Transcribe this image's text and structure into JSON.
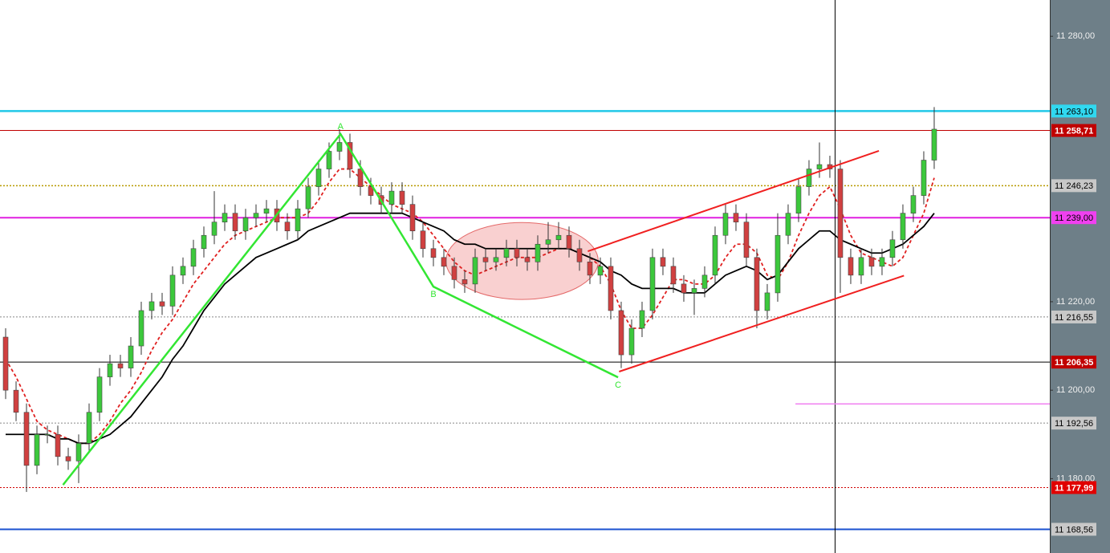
{
  "chart_data": {
    "type": "candlestick",
    "xlim": [
      -0.54,
      100.08
    ],
    "ylim": [
      11163.2,
      11288.2
    ],
    "yticks": [
      {
        "value": 11280,
        "label": "11 280,00"
      },
      {
        "value": 11220,
        "label": "11 220,00"
      },
      {
        "value": 11200,
        "label": "11 200,00"
      },
      {
        "value": 11180,
        "label": "11 180,00"
      }
    ],
    "up_color": "#3cc83c",
    "down_color": "#d04040",
    "open": [
      11212,
      11200,
      11195,
      11183,
      11190,
      11190,
      11185,
      11184,
      11188,
      11195,
      11203,
      11206,
      11205,
      11210,
      11218,
      11220,
      11219,
      11226,
      11228,
      11232,
      11235,
      11238,
      11240,
      11236,
      11239,
      11240,
      11241,
      11238,
      11236,
      11241,
      11246,
      11250,
      11254,
      11256,
      11250,
      11246,
      11244,
      11242,
      11245,
      11242,
      11236,
      11232,
      11230,
      11228,
      11225,
      11224,
      11230,
      11229,
      11230,
      11232,
      11230,
      11229,
      11233,
      11234,
      11235,
      11232,
      11229,
      11226,
      11228,
      11218,
      11208,
      11214,
      11218,
      11230,
      11228,
      11224,
      11222,
      11223,
      11226,
      11235,
      11240,
      11238,
      11230,
      11218,
      11222,
      11235,
      11240,
      11246,
      11250,
      11251,
      11250,
      11230,
      11226,
      11230,
      11228,
      11230,
      11234,
      11240,
      11244,
      11252
    ],
    "high": [
      11214,
      11202,
      11197,
      11192,
      11192,
      11192,
      11187,
      11190,
      11197,
      11205,
      11208,
      11208,
      11212,
      11220,
      11222,
      11222,
      11228,
      11230,
      11234,
      11237,
      11245,
      11242,
      11242,
      11241,
      11242,
      11243,
      11243,
      11240,
      11243,
      11248,
      11252,
      11256,
      11259,
      11258,
      11252,
      11248,
      11246,
      11247,
      11247,
      11244,
      11238,
      11234,
      11232,
      11230,
      11227,
      11232,
      11232,
      11232,
      11234,
      11234,
      11232,
      11235,
      11238,
      11238,
      11237,
      11234,
      11231,
      11230,
      11230,
      11220,
      11216,
      11220,
      11232,
      11232,
      11230,
      11226,
      11225,
      11228,
      11237,
      11242,
      11242,
      11240,
      11232,
      11224,
      11240,
      11242,
      11248,
      11252,
      11256,
      11253,
      11252,
      11232,
      11232,
      11232,
      11232,
      11236,
      11242,
      11246,
      11254,
      11264
    ],
    "low": [
      11198,
      11193,
      11177,
      11181,
      11188,
      11183,
      11182,
      11179,
      11186,
      11193,
      11201,
      11203,
      11203,
      11208,
      11216,
      11217,
      11217,
      11224,
      11226,
      11230,
      11233,
      11236,
      11234,
      11234,
      11237,
      11238,
      11236,
      11234,
      11234,
      11239,
      11244,
      11248,
      11252,
      11248,
      11244,
      11242,
      11240,
      11240,
      11240,
      11234,
      11230,
      11228,
      11226,
      11223,
      11222,
      11222,
      11227,
      11227,
      11228,
      11228,
      11227,
      11227,
      11231,
      11232,
      11230,
      11227,
      11224,
      11224,
      11216,
      11205,
      11206,
      11212,
      11216,
      11226,
      11222,
      11220,
      11217,
      11221,
      11224,
      11233,
      11236,
      11228,
      11214,
      11216,
      11220,
      11233,
      11238,
      11244,
      11248,
      11248,
      11222,
      11224,
      11224,
      11226,
      11226,
      11228,
      11232,
      11238,
      11242,
      11250
    ],
    "close": [
      11200,
      11195,
      11183,
      11190,
      11190,
      11185,
      11184,
      11188,
      11195,
      11203,
      11206,
      11205,
      11210,
      11218,
      11220,
      11219,
      11226,
      11228,
      11232,
      11235,
      11238,
      11240,
      11236,
      11239,
      11240,
      11241,
      11238,
      11236,
      11241,
      11246,
      11250,
      11254,
      11256,
      11250,
      11246,
      11244,
      11242,
      11245,
      11242,
      11236,
      11232,
      11230,
      11228,
      11225,
      11224,
      11230,
      11229,
      11230,
      11232,
      11230,
      11229,
      11233,
      11234,
      11235,
      11232,
      11229,
      11226,
      11228,
      11218,
      11208,
      11214,
      11218,
      11230,
      11228,
      11224,
      11222,
      11223,
      11226,
      11235,
      11240,
      11238,
      11230,
      11218,
      11222,
      11235,
      11240,
      11246,
      11250,
      11251,
      11250,
      11230,
      11226,
      11230,
      11228,
      11230,
      11234,
      11240,
      11244,
      11252,
      11259
    ],
    "series": [
      {
        "color": "#e02020",
        "dash": "4,3",
        "values": [
          11207,
          11203,
          11198,
          11193,
          11191,
          11190,
          11189,
          11188,
          11188,
          11190,
          11193,
          11197,
          11200,
          11204,
          11209,
          11213,
          11216,
          11220,
          11224,
          11227,
          11230,
          11233,
          11235,
          11236,
          11237,
          11238,
          11239,
          11239,
          11239,
          11240,
          11243,
          11247,
          11250,
          11250,
          11248,
          11246,
          11244,
          11242,
          11241,
          11240,
          11238,
          11235,
          11232,
          11229,
          11227,
          11226,
          11227,
          11228,
          11229,
          11230,
          11230,
          11230,
          11231,
          11232,
          11232,
          11231,
          11230,
          11228,
          11224,
          11218,
          11214,
          11214,
          11217,
          11221,
          11225,
          11225,
          11224,
          11224,
          11226,
          11230,
          11233,
          11233,
          11231,
          11226,
          11225,
          11229,
          11235,
          11240,
          11244,
          11246,
          11241,
          11235,
          11231,
          11230,
          11229,
          11228,
          11230,
          11235,
          11240,
          11248
        ]
      },
      {
        "color": "#000000",
        "dash": "none",
        "values": [
          11190,
          11190,
          11190,
          11190,
          11190,
          11189,
          11189,
          11188,
          11188,
          11189,
          11190,
          11192,
          11194,
          11197,
          11200,
          11203,
          11207,
          11210,
          11214,
          11218,
          11221,
          11224,
          11226,
          11228,
          11230,
          11231,
          11232,
          11233,
          11234,
          11236,
          11237,
          11238,
          11239,
          11240,
          11240,
          11240,
          11240,
          11240,
          11240,
          11239,
          11238,
          11237,
          11236,
          11234,
          11233,
          11233,
          11232,
          11232,
          11232,
          11232,
          11232,
          11232,
          11232,
          11232,
          11232,
          11231,
          11230,
          11229,
          11227,
          11226,
          11224,
          11223,
          11223,
          11223,
          11223,
          11222,
          11222,
          11222,
          11224,
          11226,
          11227,
          11228,
          11227,
          11225,
          11226,
          11229,
          11232,
          11234,
          11236,
          11236,
          11234,
          11233,
          11232,
          11231,
          11231,
          11232,
          11233,
          11235,
          11237,
          11240
        ]
      }
    ],
    "levels": [
      {
        "value": 11263.1,
        "label": "11 263,10",
        "color": "#20c8e8",
        "width": 2.5,
        "style": "solid",
        "label_bg": "#30d8f0",
        "label_color": "#000000"
      },
      {
        "value": 11258.71,
        "label": "11 258,71",
        "color": "#c00000",
        "width": 1,
        "style": "solid",
        "label_bg": "#c00000",
        "label_color": "#ffffff"
      },
      {
        "value": 11246.23,
        "label": "11 246,23",
        "color": "#b89a00",
        "width": 1.5,
        "style": "dotted",
        "label_bg": "#c8c8c8",
        "label_color": "#000000"
      },
      {
        "value": 11239,
        "label": "11 239,00",
        "color": "#e020e0",
        "width": 2,
        "style": "solid",
        "label_bg": "#f040f0",
        "label_color": "#000000"
      },
      {
        "value": 11216.55,
        "label": "11 216,55",
        "color": "#888888",
        "width": 1,
        "style": "dotted",
        "label_bg": "#c8c8c8",
        "label_color": "#000000"
      },
      {
        "value": 11206.35,
        "label": "11 206,35",
        "color": "#000000",
        "width": 1,
        "style": "solid",
        "label_bg": "#c00000",
        "label_color": "#ffffff"
      },
      {
        "value": 11192.56,
        "label": "11 192,56",
        "color": "#888888",
        "width": 1,
        "style": "dotted",
        "label_bg": "#c8c8c8",
        "label_color": "#000000"
      },
      {
        "value": 11177.99,
        "label": "11 177,99",
        "color": "#d00000",
        "width": 1,
        "style": "dotted",
        "label_bg": "#e00000",
        "label_color": "#ffffff"
      },
      {
        "value": 11168.56,
        "label": "11 168,56",
        "color": "#1a50d0",
        "width": 2,
        "style": "solid",
        "label_bg": "#c8c8c8",
        "label_color": "#000000"
      }
    ],
    "pattern_color": "#33e633",
    "pattern": [
      {
        "x": 5.5,
        "y": 11178.6
      },
      {
        "x": 32.1,
        "y": 11257.9,
        "label": "A"
      },
      {
        "x": 41,
        "y": 11223.4,
        "label": "B"
      },
      {
        "x": 58.7,
        "y": 11202.9,
        "label": "C"
      }
    ],
    "channel_color": "#f02020",
    "channel": [
      [
        {
          "x": 55.8,
          "y": 11231.4
        },
        {
          "x": 83.7,
          "y": 11254.1
        }
      ],
      [
        {
          "x": 58.8,
          "y": 11204.2
        },
        {
          "x": 86.1,
          "y": 11225.9
        }
      ]
    ],
    "ellipse": {
      "cx": 49.5,
      "cy": 11229.2,
      "rx": 7.3,
      "ry": 8.7,
      "color": "#f8c8c8",
      "stroke": "#e05050"
    },
    "cursor_x": 79.5,
    "marker_line": {
      "y": 11196.9,
      "x_from": 75.7,
      "color": "#f080f0"
    }
  }
}
